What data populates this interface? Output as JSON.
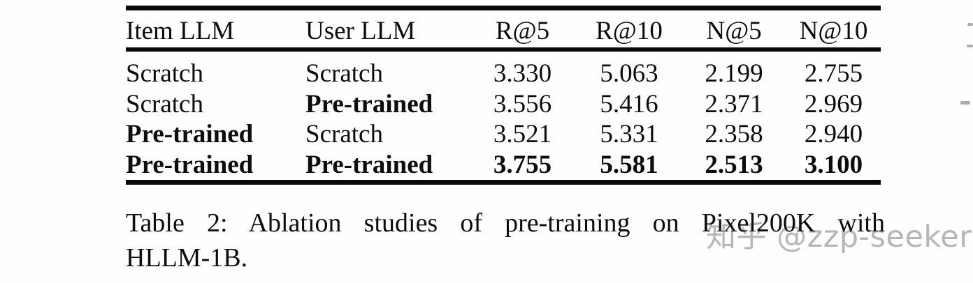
{
  "page": {
    "background": "#fefefe",
    "ink_color": "#0d0d0d",
    "rule_color": "#0a0a0a"
  },
  "table": {
    "headers": [
      "Item LLM",
      "User LLM",
      "R@5",
      "R@10",
      "N@5",
      "N@10"
    ],
    "rows": [
      {
        "cells": [
          "Scratch",
          "Scratch",
          "3.330",
          "5.063",
          "2.199",
          "2.755"
        ],
        "bold": [
          false,
          false,
          false,
          false,
          false,
          false
        ]
      },
      {
        "cells": [
          "Scratch",
          "Pre-trained",
          "3.556",
          "5.416",
          "2.371",
          "2.969"
        ],
        "bold": [
          false,
          true,
          false,
          false,
          false,
          false
        ]
      },
      {
        "cells": [
          "Pre-trained",
          "Scratch",
          "3.521",
          "5.331",
          "2.358",
          "2.940"
        ],
        "bold": [
          true,
          false,
          false,
          false,
          false,
          false
        ]
      },
      {
        "cells": [
          "Pre-trained",
          "Pre-trained",
          "3.755",
          "5.581",
          "2.513",
          "3.100"
        ],
        "bold": [
          true,
          true,
          true,
          true,
          true,
          true
        ]
      }
    ]
  },
  "caption": {
    "line1": "Table 2: Ablation studies of pre-training on Pixel200K with",
    "line2": "HLLM-1B."
  },
  "watermark": {
    "text": "知乎 @zzp-seeker",
    "color": "#b6b6b6"
  }
}
